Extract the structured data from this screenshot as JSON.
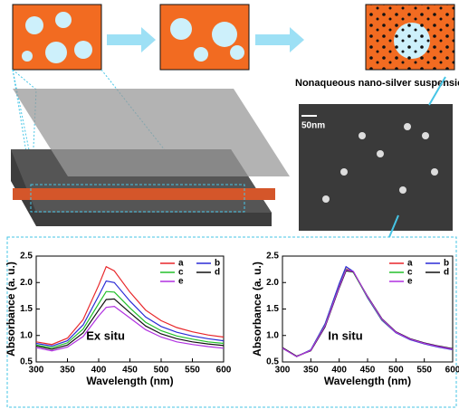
{
  "labels": {
    "suspension": "Nonaqueous nano-silver suspension",
    "scale": "50nm"
  },
  "chart_data": [
    {
      "type": "line",
      "annotation": "Ex situ",
      "x_label": "Wavelength (nm)",
      "y_label": "Absorbance (a. u.)",
      "x": [
        300,
        325,
        350,
        375,
        400,
        412,
        425,
        450,
        475,
        500,
        525,
        550,
        575,
        600
      ],
      "xlim": [
        300,
        600
      ],
      "xticks": [
        300,
        350,
        400,
        450,
        500,
        550,
        600
      ],
      "ylim": [
        0.5,
        2.5
      ],
      "yticks": [
        0.5,
        {
          "value": 1,
          "label": "1.0"
        },
        1.5,
        {
          "value": 2,
          "label": "2.0"
        },
        2.5
      ],
      "series": [
        {
          "name": "a",
          "color": "#e8262a",
          "values": [
            0.88,
            0.83,
            0.95,
            1.3,
            1.95,
            2.3,
            2.22,
            1.82,
            1.48,
            1.28,
            1.15,
            1.07,
            1.01,
            0.97
          ]
        },
        {
          "name": "b",
          "color": "#2b2bd6",
          "values": [
            0.85,
            0.8,
            0.9,
            1.2,
            1.75,
            2.03,
            2.0,
            1.65,
            1.35,
            1.17,
            1.06,
            0.99,
            0.94,
            0.9
          ]
        },
        {
          "name": "c",
          "color": "#22c02a",
          "values": [
            0.82,
            0.77,
            0.86,
            1.12,
            1.6,
            1.83,
            1.82,
            1.52,
            1.25,
            1.09,
            0.99,
            0.93,
            0.88,
            0.85
          ]
        },
        {
          "name": "d",
          "color": "#111111",
          "values": [
            0.8,
            0.74,
            0.82,
            1.05,
            1.48,
            1.68,
            1.69,
            1.43,
            1.18,
            1.03,
            0.94,
            0.88,
            0.84,
            0.81
          ]
        },
        {
          "name": "e",
          "color": "#b030e0",
          "values": [
            0.77,
            0.71,
            0.78,
            0.98,
            1.37,
            1.53,
            1.55,
            1.33,
            1.11,
            0.97,
            0.88,
            0.83,
            0.79,
            0.76
          ]
        }
      ]
    },
    {
      "type": "line",
      "annotation": "In situ",
      "x_label": "Wavelength (nm)",
      "y_label": "Absorbance (a. u.)",
      "x": [
        300,
        325,
        350,
        375,
        400,
        412,
        425,
        450,
        475,
        500,
        525,
        550,
        575,
        600
      ],
      "xlim": [
        300,
        600
      ],
      "xticks": [
        300,
        350,
        400,
        450,
        500,
        550,
        600
      ],
      "ylim": [
        0.5,
        2.5
      ],
      "yticks": [
        0.5,
        {
          "value": 1,
          "label": "1.0"
        },
        1.5,
        {
          "value": 2,
          "label": "2.0"
        },
        2.5
      ],
      "series": [
        {
          "name": "a",
          "color": "#e8262a",
          "values": [
            0.77,
            0.6,
            0.72,
            1.2,
            1.95,
            2.26,
            2.2,
            1.72,
            1.3,
            1.06,
            0.93,
            0.85,
            0.79,
            0.74
          ]
        },
        {
          "name": "b",
          "color": "#2b2bd6",
          "values": [
            0.77,
            0.6,
            0.73,
            1.22,
            1.98,
            2.3,
            2.21,
            1.71,
            1.29,
            1.05,
            0.92,
            0.84,
            0.78,
            0.73
          ]
        },
        {
          "name": "c",
          "color": "#22c02a",
          "values": [
            0.76,
            0.6,
            0.72,
            1.19,
            1.93,
            2.25,
            2.19,
            1.72,
            1.3,
            1.06,
            0.93,
            0.85,
            0.79,
            0.74
          ]
        },
        {
          "name": "d",
          "color": "#111111",
          "values": [
            0.77,
            0.61,
            0.71,
            1.16,
            1.9,
            2.22,
            2.2,
            1.74,
            1.32,
            1.07,
            0.94,
            0.86,
            0.8,
            0.75
          ]
        },
        {
          "name": "e",
          "color": "#b030e0",
          "values": [
            0.76,
            0.6,
            0.72,
            1.18,
            1.92,
            2.24,
            2.21,
            1.73,
            1.31,
            1.06,
            0.93,
            0.85,
            0.79,
            0.74
          ]
        }
      ]
    }
  ]
}
